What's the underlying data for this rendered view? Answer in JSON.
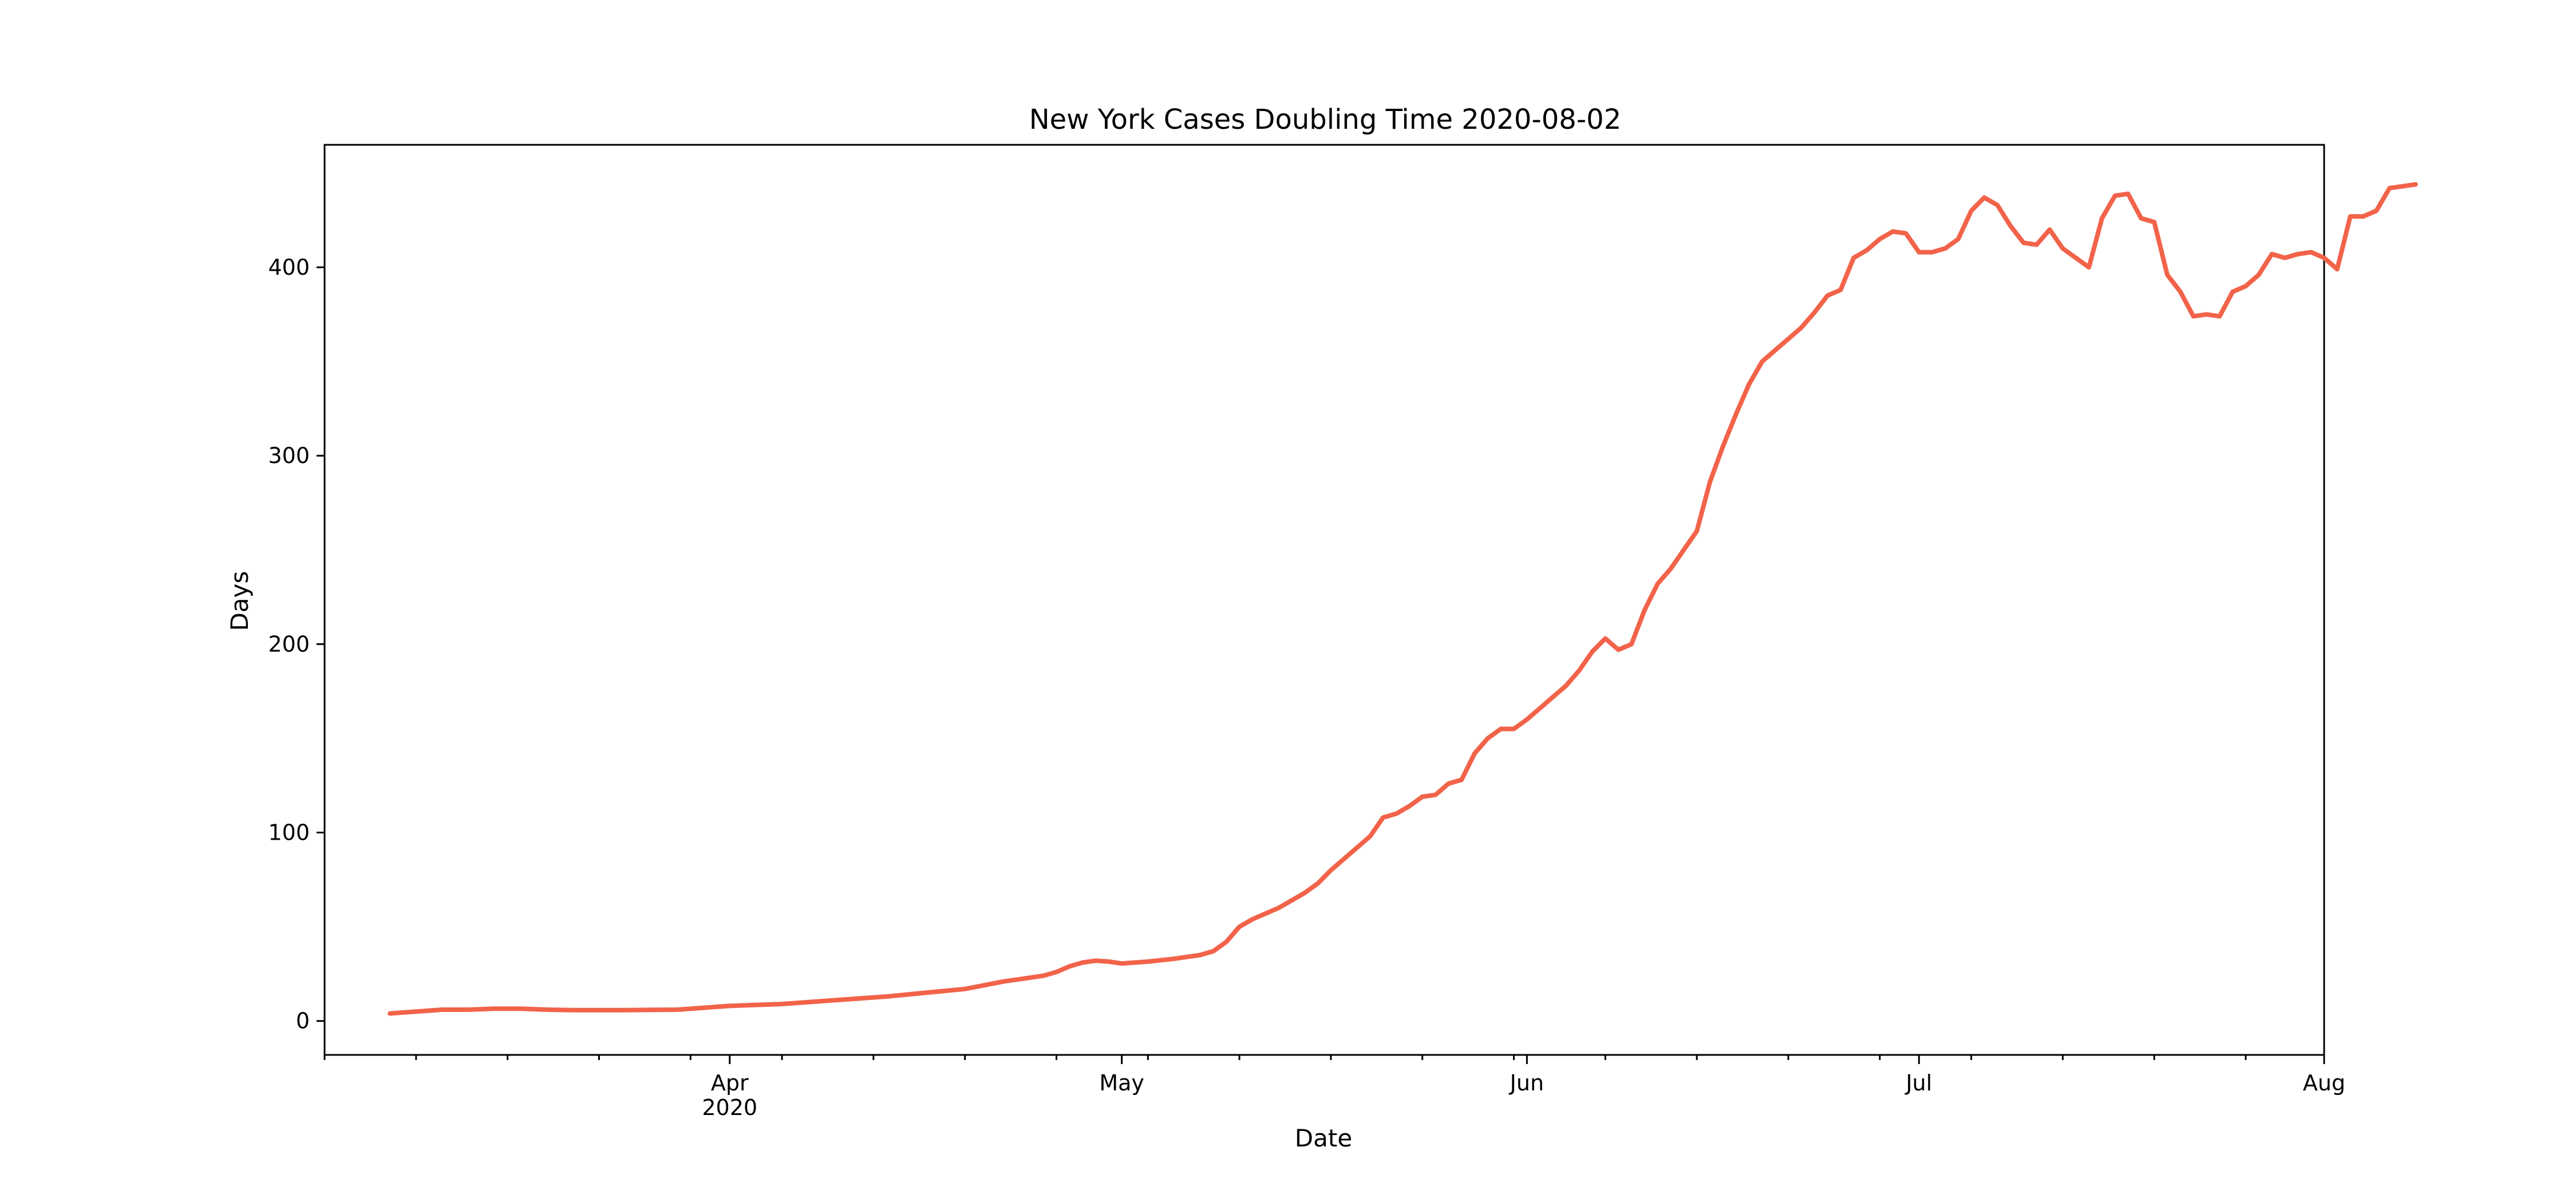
{
  "chart_data": {
    "type": "line",
    "title": "New York Cases Doubling Time 2020-08-02",
    "xlabel": "Date",
    "ylabel": "Days",
    "x_type": "date",
    "xlim": [
      "2020-03-01",
      "2020-08-01"
    ],
    "ylim": [
      -18,
      465
    ],
    "grid": false,
    "color": "#f26349",
    "y_ticks": [
      0,
      100,
      200,
      300,
      400
    ],
    "x_major_ticks": [
      {
        "date": "2020-04-01",
        "label": "Apr",
        "sublabel": "2020"
      },
      {
        "date": "2020-05-01",
        "label": "May",
        "sublabel": ""
      },
      {
        "date": "2020-06-01",
        "label": "Jun",
        "sublabel": ""
      },
      {
        "date": "2020-07-01",
        "label": "Jul",
        "sublabel": ""
      },
      {
        "date": "2020-08-01",
        "label": "Aug",
        "sublabel": ""
      }
    ],
    "x_minor_ticks": [
      "2020-03-01",
      "2020-03-08",
      "2020-03-15",
      "2020-03-22",
      "2020-03-29",
      "2020-04-05",
      "2020-04-12",
      "2020-04-19",
      "2020-04-26",
      "2020-05-03",
      "2020-05-10",
      "2020-05-17",
      "2020-05-24",
      "2020-05-31",
      "2020-06-07",
      "2020-06-14",
      "2020-06-21",
      "2020-06-28",
      "2020-07-05",
      "2020-07-12",
      "2020-07-19",
      "2020-07-26"
    ],
    "series": [
      {
        "points": [
          [
            "2020-03-06",
            4
          ],
          [
            "2020-03-08",
            5
          ],
          [
            "2020-03-10",
            6
          ],
          [
            "2020-03-12",
            6
          ],
          [
            "2020-03-14",
            6.5
          ],
          [
            "2020-03-16",
            6.5
          ],
          [
            "2020-03-18",
            6
          ],
          [
            "2020-03-20",
            5.8
          ],
          [
            "2020-03-24",
            5.8
          ],
          [
            "2020-03-28",
            6
          ],
          [
            "2020-04-01",
            8
          ],
          [
            "2020-04-05",
            9
          ],
          [
            "2020-04-09",
            11
          ],
          [
            "2020-04-13",
            13
          ],
          [
            "2020-04-16",
            15
          ],
          [
            "2020-04-19",
            17
          ],
          [
            "2020-04-22",
            21
          ],
          [
            "2020-04-25",
            24
          ],
          [
            "2020-04-26",
            26
          ],
          [
            "2020-04-27",
            29
          ],
          [
            "2020-04-28",
            31
          ],
          [
            "2020-04-29",
            32
          ],
          [
            "2020-04-30",
            31.5
          ],
          [
            "2020-05-01",
            30.5
          ],
          [
            "2020-05-03",
            31.5
          ],
          [
            "2020-05-05",
            33
          ],
          [
            "2020-05-07",
            35
          ],
          [
            "2020-05-08",
            37
          ],
          [
            "2020-05-09",
            42
          ],
          [
            "2020-05-10",
            50
          ],
          [
            "2020-05-11",
            54
          ],
          [
            "2020-05-12",
            57
          ],
          [
            "2020-05-13",
            60
          ],
          [
            "2020-05-14",
            64
          ],
          [
            "2020-05-15",
            68
          ],
          [
            "2020-05-16",
            73
          ],
          [
            "2020-05-17",
            80
          ],
          [
            "2020-05-18",
            86
          ],
          [
            "2020-05-19",
            92
          ],
          [
            "2020-05-20",
            98
          ],
          [
            "2020-05-21",
            108
          ],
          [
            "2020-05-22",
            110
          ],
          [
            "2020-05-23",
            114
          ],
          [
            "2020-05-24",
            119
          ],
          [
            "2020-05-25",
            120
          ],
          [
            "2020-05-26",
            126
          ],
          [
            "2020-05-27",
            128
          ],
          [
            "2020-05-28",
            142
          ],
          [
            "2020-05-29",
            150
          ],
          [
            "2020-05-30",
            155
          ],
          [
            "2020-05-31",
            155
          ],
          [
            "2020-06-01",
            160
          ],
          [
            "2020-06-02",
            166
          ],
          [
            "2020-06-03",
            172
          ],
          [
            "2020-06-04",
            178
          ],
          [
            "2020-06-05",
            186
          ],
          [
            "2020-06-06",
            196
          ],
          [
            "2020-06-07",
            203
          ],
          [
            "2020-06-08",
            197
          ],
          [
            "2020-06-09",
            200
          ],
          [
            "2020-06-10",
            218
          ],
          [
            "2020-06-11",
            232
          ],
          [
            "2020-06-12",
            240
          ],
          [
            "2020-06-13",
            250
          ],
          [
            "2020-06-14",
            260
          ],
          [
            "2020-06-15",
            286
          ],
          [
            "2020-06-16",
            305
          ],
          [
            "2020-06-17",
            322
          ],
          [
            "2020-06-18",
            338
          ],
          [
            "2020-06-19",
            350
          ],
          [
            "2020-06-20",
            356
          ],
          [
            "2020-06-21",
            362
          ],
          [
            "2020-06-22",
            368
          ],
          [
            "2020-06-23",
            376
          ],
          [
            "2020-06-24",
            385
          ],
          [
            "2020-06-25",
            388
          ],
          [
            "2020-06-26",
            405
          ],
          [
            "2020-06-27",
            409
          ],
          [
            "2020-06-28",
            415
          ],
          [
            "2020-06-29",
            419
          ],
          [
            "2020-06-30",
            418
          ],
          [
            "2020-07-01",
            408
          ],
          [
            "2020-07-02",
            408
          ],
          [
            "2020-07-03",
            410
          ],
          [
            "2020-07-04",
            415
          ],
          [
            "2020-07-05",
            430
          ],
          [
            "2020-07-06",
            437
          ],
          [
            "2020-07-07",
            433
          ],
          [
            "2020-07-08",
            422
          ],
          [
            "2020-07-09",
            413
          ],
          [
            "2020-07-10",
            412
          ],
          [
            "2020-07-11",
            420
          ],
          [
            "2020-07-12",
            410
          ],
          [
            "2020-07-13",
            405
          ],
          [
            "2020-07-14",
            400
          ],
          [
            "2020-07-15",
            426
          ],
          [
            "2020-07-16",
            438
          ],
          [
            "2020-07-17",
            439
          ],
          [
            "2020-07-18",
            426
          ],
          [
            "2020-07-19",
            424
          ],
          [
            "2020-07-20",
            396
          ],
          [
            "2020-07-21",
            387
          ],
          [
            "2020-07-22",
            374
          ],
          [
            "2020-07-23",
            375
          ],
          [
            "2020-07-24",
            374
          ],
          [
            "2020-07-25",
            387
          ],
          [
            "2020-07-26",
            390
          ],
          [
            "2020-07-27",
            396
          ],
          [
            "2020-07-28",
            407
          ],
          [
            "2020-07-29",
            405
          ],
          [
            "2020-07-30",
            407
          ],
          [
            "2020-07-31",
            408
          ],
          [
            "2020-08-01",
            405
          ],
          [
            "2020-08-02",
            399
          ],
          [
            "2020-08-03",
            427
          ],
          [
            "2020-08-04",
            427
          ],
          [
            "2020-08-05",
            430
          ],
          [
            "2020-08-06",
            442
          ],
          [
            "2020-08-07",
            443
          ],
          [
            "2020-08-08",
            444
          ]
        ]
      }
    ]
  }
}
